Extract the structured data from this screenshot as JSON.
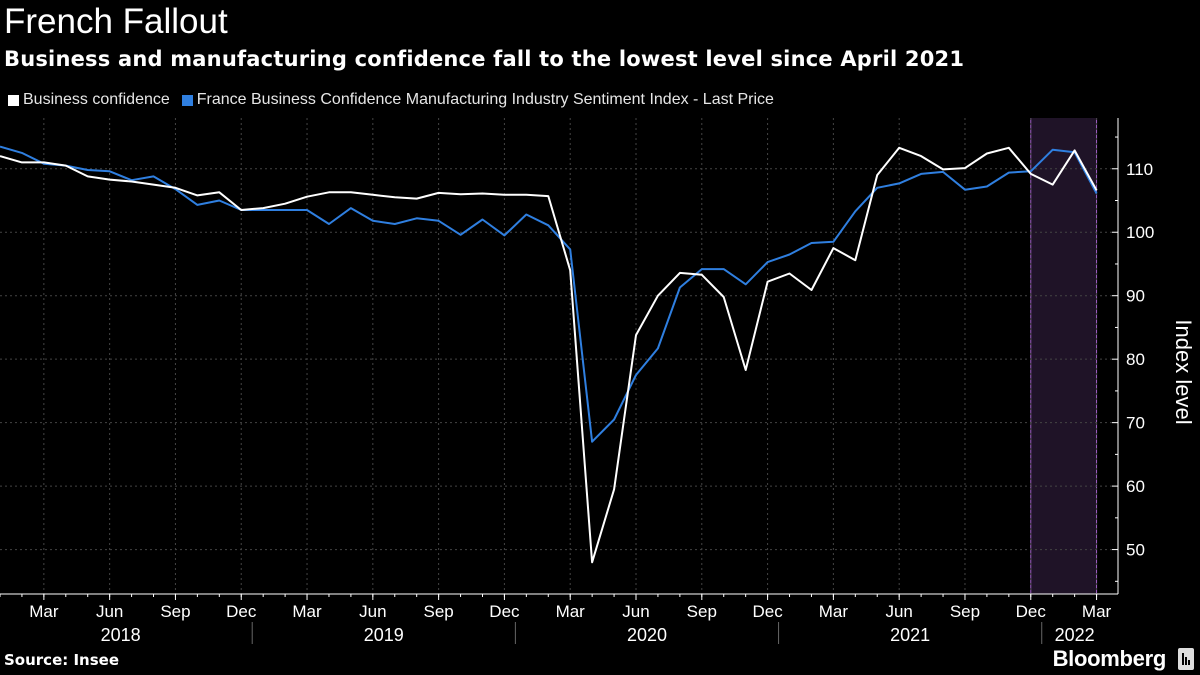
{
  "title": "French Fallout",
  "subtitle": "Business and manufacturing confidence fall to the lowest level since April 2021",
  "source": "Source: Insee",
  "brand": "Bloomberg",
  "colors": {
    "background": "#000000",
    "business": "#ffffff",
    "manufacturing": "#2f7fe0",
    "highlight_fill": "#1f1327",
    "highlight_stroke": "#a060c8",
    "grid": "#444444"
  },
  "chart_data": {
    "type": "line",
    "title": "French Fallout",
    "subtitle": "Business and manufacturing confidence fall to the lowest level since April 2021",
    "ylabel": "Index level",
    "ylim": [
      43,
      118
    ],
    "yticks": [
      50,
      60,
      70,
      80,
      90,
      100,
      110
    ],
    "y_axis_side": "right",
    "grid": true,
    "legend_placement": "top-left",
    "x": [
      "2018-01",
      "2018-02",
      "2018-03",
      "2018-04",
      "2018-05",
      "2018-06",
      "2018-07",
      "2018-08",
      "2018-09",
      "2018-10",
      "2018-11",
      "2018-12",
      "2019-01",
      "2019-02",
      "2019-03",
      "2019-04",
      "2019-05",
      "2019-06",
      "2019-07",
      "2019-08",
      "2019-09",
      "2019-10",
      "2019-11",
      "2019-12",
      "2020-01",
      "2020-02",
      "2020-03",
      "2020-04",
      "2020-05",
      "2020-06",
      "2020-07",
      "2020-08",
      "2020-09",
      "2020-10",
      "2020-11",
      "2020-12",
      "2021-01",
      "2021-02",
      "2021-03",
      "2021-04",
      "2021-05",
      "2021-06",
      "2021-07",
      "2021-08",
      "2021-09",
      "2021-10",
      "2021-11",
      "2021-12",
      "2022-01",
      "2022-02",
      "2022-03"
    ],
    "xtick_labels": [
      {
        "x": "2018-03",
        "label": "Mar"
      },
      {
        "x": "2018-06",
        "label": "Jun"
      },
      {
        "x": "2018-09",
        "label": "Sep"
      },
      {
        "x": "2018-12",
        "label": "Dec"
      },
      {
        "x": "2019-03",
        "label": "Mar"
      },
      {
        "x": "2019-06",
        "label": "Jun"
      },
      {
        "x": "2019-09",
        "label": "Sep"
      },
      {
        "x": "2019-12",
        "label": "Dec"
      },
      {
        "x": "2020-03",
        "label": "Mar"
      },
      {
        "x": "2020-06",
        "label": "Jun"
      },
      {
        "x": "2020-09",
        "label": "Sep"
      },
      {
        "x": "2020-12",
        "label": "Dec"
      },
      {
        "x": "2021-03",
        "label": "Mar"
      },
      {
        "x": "2021-06",
        "label": "Jun"
      },
      {
        "x": "2021-09",
        "label": "Sep"
      },
      {
        "x": "2021-12",
        "label": "Dec"
      },
      {
        "x": "2022-03",
        "label": "Mar"
      }
    ],
    "year_labels": [
      {
        "year": "2018",
        "from": "2018-01",
        "to": "2018-12"
      },
      {
        "year": "2019",
        "from": "2019-01",
        "to": "2019-12"
      },
      {
        "year": "2020",
        "from": "2020-01",
        "to": "2020-12"
      },
      {
        "year": "2021",
        "from": "2021-01",
        "to": "2021-12"
      },
      {
        "year": "2022",
        "from": "2022-01",
        "to": "2022-03"
      }
    ],
    "highlight": {
      "from": "2021-12",
      "to": "2022-03"
    },
    "series": [
      {
        "name": "Business confidence",
        "color": "#ffffff",
        "values": [
          112,
          111,
          111,
          110.5,
          108.8,
          108.3,
          108,
          107.5,
          107,
          105.8,
          106.3,
          103.5,
          103.8,
          104.5,
          105.6,
          106.3,
          106.3,
          105.9,
          105.5,
          105.3,
          106.2,
          106,
          106.1,
          105.9,
          105.9,
          105.7,
          94,
          48,
          59.5,
          83.8,
          90,
          93.6,
          93.3,
          89.8,
          78.3,
          92.2,
          93.5,
          90.9,
          97.5,
          95.6,
          109,
          113.3,
          112,
          109.9,
          110.1,
          112.4,
          113.3,
          109.2,
          107.5,
          112.9,
          106.6
        ]
      },
      {
        "name": "France Business Confidence Manufacturing Industry Sentiment Index - Last Price",
        "color": "#2f7fe0",
        "values": [
          113.5,
          112.5,
          110.8,
          110.5,
          109.8,
          109.6,
          108.2,
          108.8,
          106.8,
          104.3,
          105,
          103.5,
          103.5,
          103.5,
          103.5,
          101.3,
          103.8,
          101.8,
          101.3,
          102.2,
          101.8,
          99.6,
          102,
          99.5,
          102.8,
          101.1,
          97.3,
          67,
          70.5,
          77.5,
          81.7,
          91.3,
          94.2,
          94.2,
          91.8,
          95.3,
          96.5,
          98.3,
          98.5,
          103.3,
          107,
          107.7,
          109.2,
          109.5,
          106.7,
          107.2,
          109.4,
          109.6,
          113,
          112.6,
          106.1
        ]
      }
    ]
  }
}
